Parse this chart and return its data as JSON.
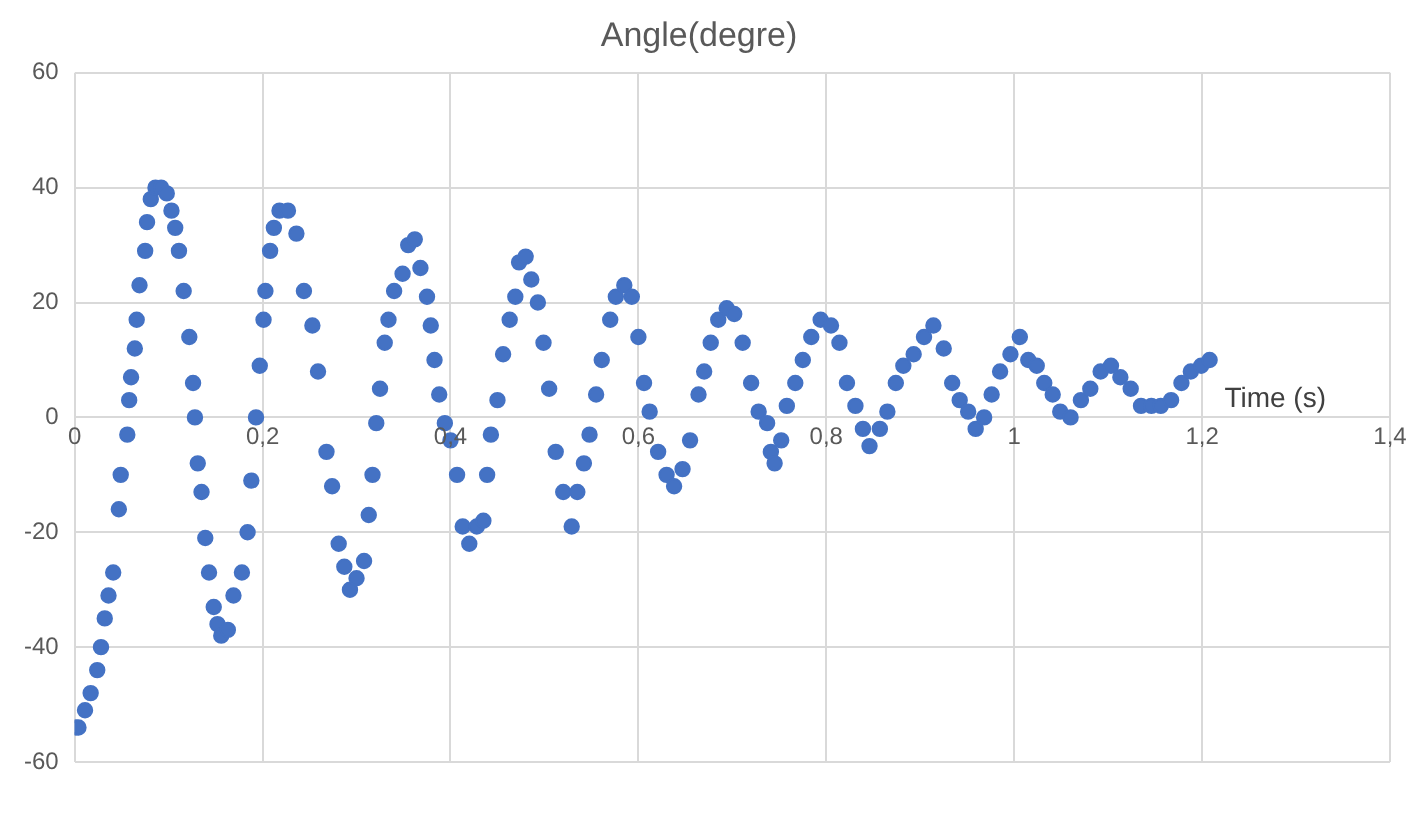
{
  "chart_data": {
    "type": "scatter",
    "title": "Angle(degre)",
    "xlabel": "Time (s)",
    "x": [
      0,
      0.004,
      0.011,
      0.017,
      0.024,
      0.028,
      0.032,
      0.036,
      0.041,
      0.047,
      0.049,
      0.056,
      0.058,
      0.06,
      0.064,
      0.066,
      0.069,
      0.075,
      0.077,
      0.081,
      0.086,
      0.092,
      0.098,
      0.103,
      0.107,
      0.111,
      0.116,
      0.122,
      0.126,
      0.128,
      0.131,
      0.135,
      0.139,
      0.143,
      0.148,
      0.152,
      0.156,
      0.163,
      0.169,
      0.178,
      0.184,
      0.188,
      0.193,
      0.197,
      0.201,
      0.203,
      0.208,
      0.212,
      0.218,
      0.227,
      0.236,
      0.244,
      0.253,
      0.259,
      0.268,
      0.274,
      0.281,
      0.287,
      0.293,
      0.3,
      0.308,
      0.313,
      0.317,
      0.321,
      0.325,
      0.33,
      0.334,
      0.34,
      0.349,
      0.355,
      0.362,
      0.368,
      0.375,
      0.379,
      0.383,
      0.388,
      0.394,
      0.4,
      0.407,
      0.413,
      0.42,
      0.428,
      0.435,
      0.439,
      0.443,
      0.45,
      0.456,
      0.463,
      0.469,
      0.473,
      0.48,
      0.486,
      0.493,
      0.499,
      0.505,
      0.512,
      0.52,
      0.529,
      0.535,
      0.542,
      0.548,
      0.555,
      0.561,
      0.57,
      0.576,
      0.585,
      0.593,
      0.6,
      0.606,
      0.612,
      0.621,
      0.63,
      0.638,
      0.647,
      0.655,
      0.664,
      0.67,
      0.677,
      0.685,
      0.694,
      0.702,
      0.711,
      0.72,
      0.728,
      0.737,
      0.741,
      0.745,
      0.752,
      0.758,
      0.767,
      0.775,
      0.784,
      0.794,
      0.805,
      0.814,
      0.822,
      0.831,
      0.839,
      0.846,
      0.857,
      0.865,
      0.874,
      0.882,
      0.893,
      0.904,
      0.914,
      0.925,
      0.934,
      0.942,
      0.951,
      0.959,
      0.968,
      0.976,
      0.985,
      0.996,
      1.006,
      1.015,
      1.024,
      1.032,
      1.041,
      1.049,
      1.06,
      1.071,
      1.081,
      1.092,
      1.103,
      1.113,
      1.124,
      1.135,
      1.146,
      1.156,
      1.167,
      1.178,
      1.188,
      1.199,
      1.208
    ],
    "series": [
      {
        "color": "#4472c4",
        "values": [
          -54,
          -54,
          -51,
          -48,
          -44,
          -40,
          -35,
          -31,
          -27,
          -16,
          -10,
          -3,
          3,
          7,
          12,
          17,
          23,
          29,
          34,
          38,
          40,
          40,
          39,
          36,
          33,
          29,
          22,
          14,
          6,
          0,
          -8,
          -13,
          -21,
          -27,
          -33,
          -36,
          -38,
          -37,
          -31,
          -27,
          -20,
          -11,
          0,
          9,
          17,
          22,
          29,
          33,
          36,
          36,
          32,
          22,
          16,
          8,
          -6,
          -12,
          -22,
          -26,
          -30,
          -28,
          -25,
          -17,
          -10,
          -1,
          5,
          13,
          17,
          22,
          25,
          30,
          31,
          26,
          21,
          16,
          10,
          4,
          -1,
          -4,
          -10,
          -19,
          -22,
          -19,
          -18,
          -10,
          -3,
          3,
          11,
          17,
          21,
          27,
          28,
          24,
          20,
          13,
          5,
          -6,
          -13,
          -19,
          -13,
          -8,
          -3,
          4,
          10,
          17,
          21,
          23,
          21,
          14,
          6,
          1,
          -6,
          -10,
          -12,
          -9,
          -4,
          4,
          8,
          13,
          17,
          19,
          18,
          13,
          6,
          1,
          -1,
          -6,
          -8,
          -4,
          2,
          6,
          10,
          14,
          17,
          16,
          13,
          6,
          2,
          -2,
          -5,
          -2,
          1,
          6,
          9,
          11,
          14,
          16,
          12,
          6,
          3,
          1,
          -2,
          0,
          4,
          8,
          11,
          14,
          10,
          9,
          6,
          4,
          1,
          0,
          3,
          5,
          8,
          9,
          7,
          5,
          2,
          2,
          2,
          3,
          6,
          8,
          9,
          10
        ]
      }
    ],
    "xlim": [
      0,
      1.4
    ],
    "xticks": [
      0,
      {
        "value": 0.2,
        "label": "0,2"
      },
      {
        "value": 0.4,
        "label": "0,4"
      },
      {
        "value": 0.6,
        "label": "0,6"
      },
      {
        "value": 0.8,
        "label": "0,8"
      },
      1,
      {
        "value": 1.2,
        "label": "1,2"
      },
      {
        "value": 1.4,
        "label": "1,4"
      }
    ],
    "ylim": [
      -60,
      60
    ],
    "yticks": [
      -60,
      -40,
      -20,
      0,
      20,
      40,
      60
    ],
    "grid": true,
    "legend": false,
    "marker": "circle"
  }
}
